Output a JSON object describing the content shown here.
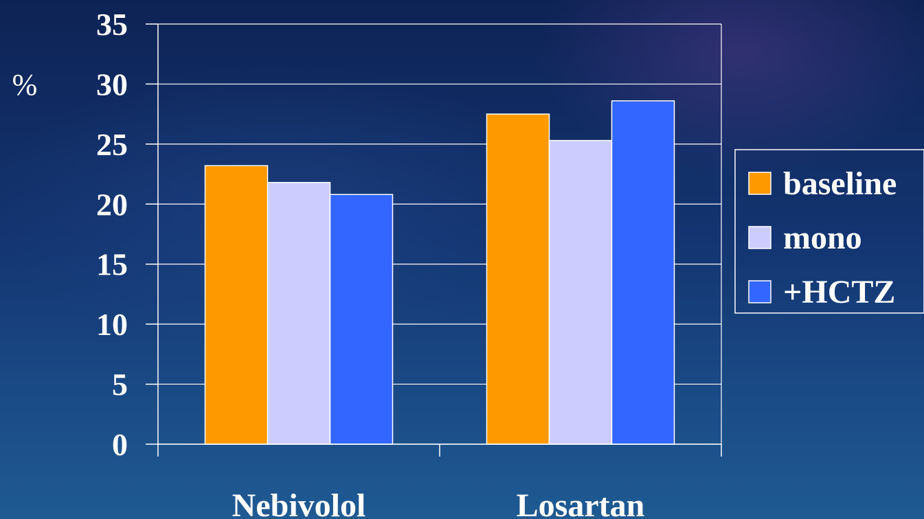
{
  "chart_data": {
    "type": "bar",
    "categories": [
      "Nebivolol",
      "Losartan"
    ],
    "series": [
      {
        "name": "baseline",
        "values": [
          23.2,
          27.5
        ],
        "color": "#ff9900"
      },
      {
        "name": "mono",
        "values": [
          21.8,
          25.3
        ],
        "color": "#ccccff"
      },
      {
        "name": "+HCTZ",
        "values": [
          20.8,
          28.6
        ],
        "color": "#3366ff"
      }
    ],
    "title": "",
    "xlabel": "",
    "ylabel": "%",
    "ylim": [
      0,
      35
    ],
    "yticks": [
      "0",
      "5",
      "10",
      "15",
      "20",
      "25",
      "30",
      "35"
    ],
    "grid": true,
    "legend_position": "right"
  }
}
